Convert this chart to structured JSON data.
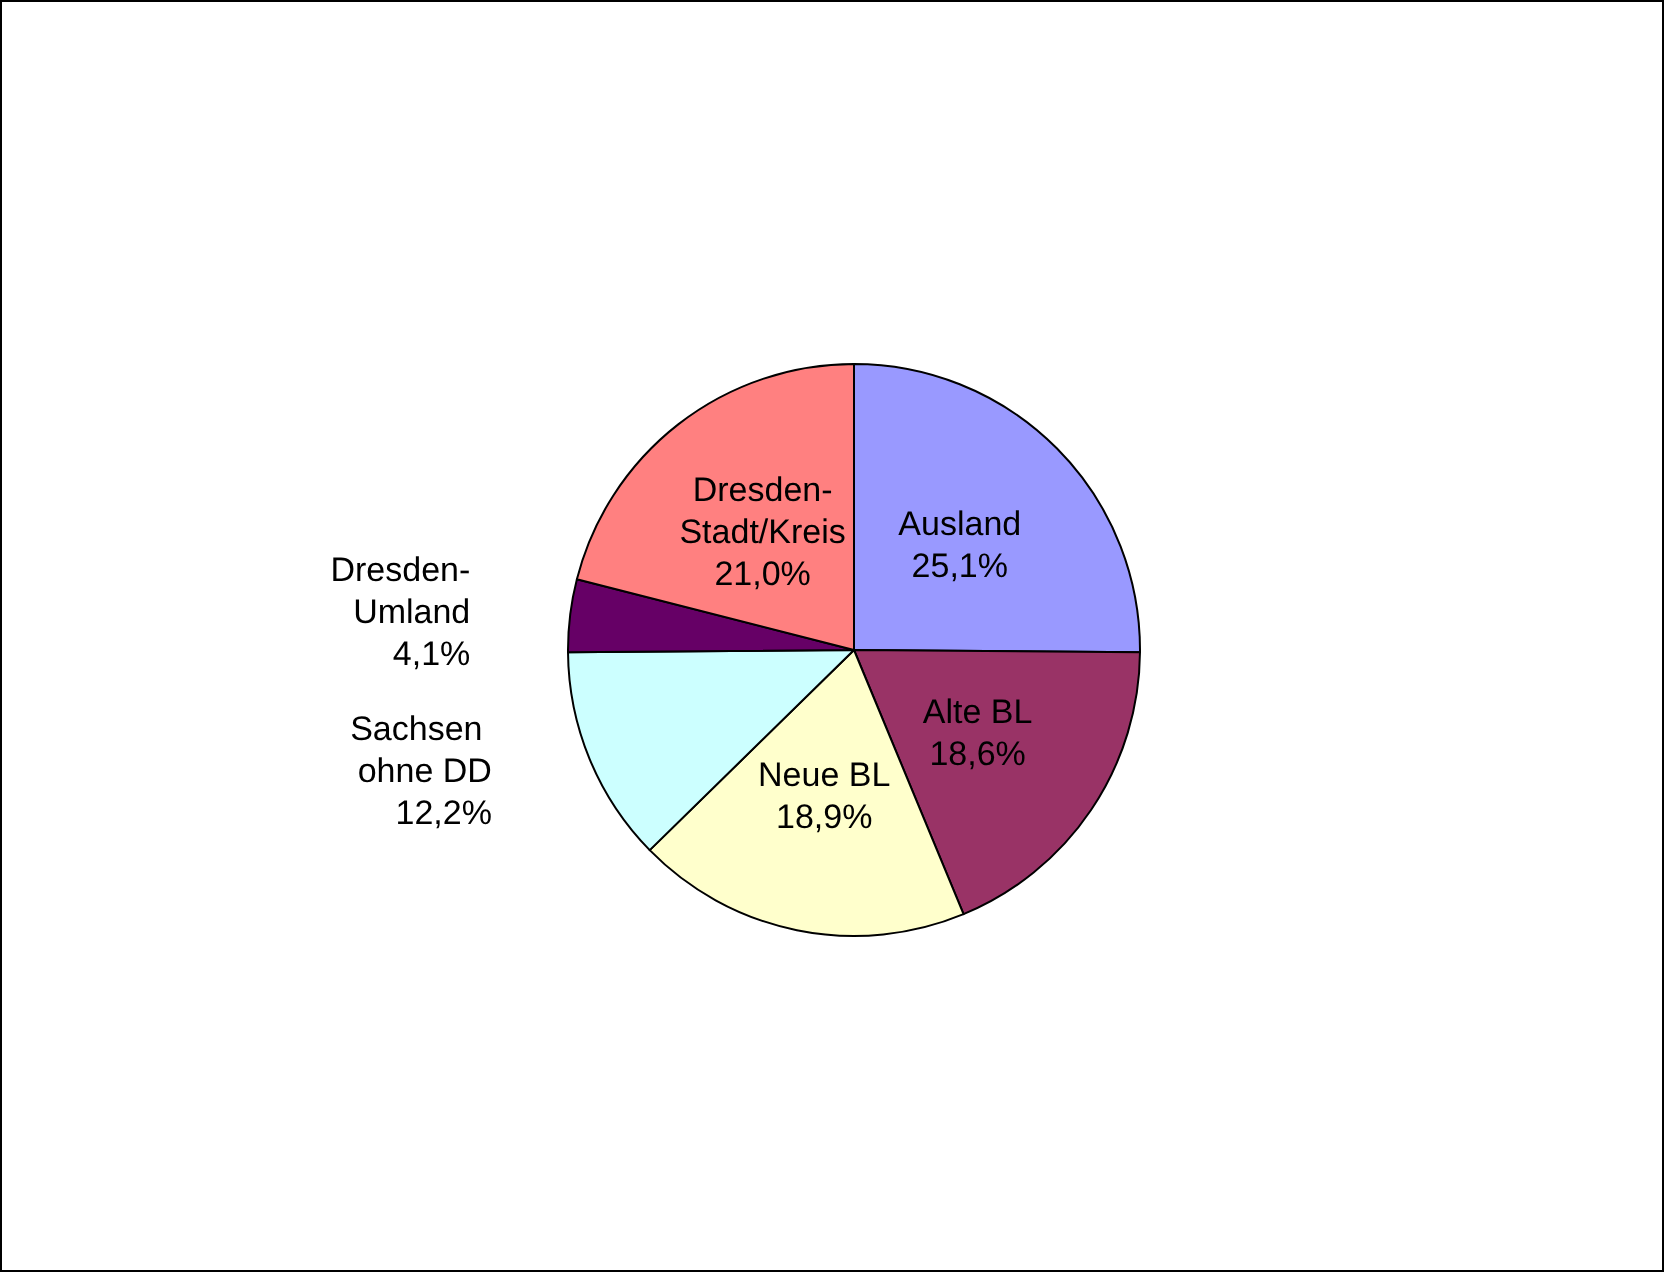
{
  "chart_data": {
    "type": "pie",
    "categories": [
      "Ausland",
      "Alte BL",
      "Neue BL",
      "Sachsen ohne DD",
      "Dresden-Umland",
      "Dresden-Stadt/Kreis"
    ],
    "values": [
      25.1,
      18.6,
      18.9,
      12.2,
      4.1,
      21.0
    ],
    "value_labels": [
      "25,1%",
      "18,6%",
      "18,9%",
      "12,2%",
      "4,1%",
      "21,0%"
    ],
    "colors": [
      "#9999ff",
      "#993366",
      "#ffffcc",
      "#ccffff",
      "#660066",
      "#ff8080"
    ],
    "legend": false
  }
}
